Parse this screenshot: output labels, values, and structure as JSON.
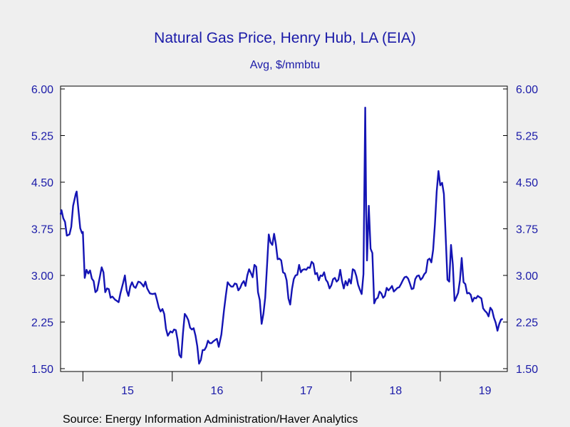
{
  "chart_data": {
    "type": "line",
    "title": "Natural Gas Price, Henry Hub, LA (EIA)",
    "subtitle": "Avg, $/mmbtu",
    "source": "Source:  Energy Information Administration/Haver Analytics",
    "xlabel": "",
    "ylabel": "",
    "ylim": [
      1.5,
      6.0
    ],
    "y_ticks": [
      "6.00",
      "5.25",
      "4.50",
      "3.75",
      "3.00",
      "2.25",
      "1.50"
    ],
    "x_ticks": [
      "15",
      "16",
      "17",
      "18",
      "19"
    ],
    "grid": false,
    "line_color": "#1414b4",
    "x_unit": "year (decimal)",
    "series": [
      {
        "points": [
          [
            2014.25,
            3.98
          ],
          [
            2014.26,
            4.05
          ],
          [
            2014.28,
            3.92
          ],
          [
            2014.3,
            3.86
          ],
          [
            2014.32,
            3.64
          ],
          [
            2014.35,
            3.66
          ],
          [
            2014.37,
            3.78
          ],
          [
            2014.39,
            4.12
          ],
          [
            2014.42,
            4.31
          ],
          [
            2014.43,
            4.35
          ],
          [
            2014.45,
            4.05
          ],
          [
            2014.47,
            3.76
          ],
          [
            2014.49,
            3.68
          ],
          [
            2014.5,
            3.7
          ],
          [
            2014.52,
            2.96
          ],
          [
            2014.54,
            3.09
          ],
          [
            2014.56,
            3.03
          ],
          [
            2014.58,
            3.08
          ],
          [
            2014.6,
            2.95
          ],
          [
            2014.62,
            2.91
          ],
          [
            2014.64,
            2.73
          ],
          [
            2014.66,
            2.76
          ],
          [
            2014.69,
            2.98
          ],
          [
            2014.71,
            3.13
          ],
          [
            2014.73,
            3.05
          ],
          [
            2014.75,
            2.73
          ],
          [
            2014.77,
            2.79
          ],
          [
            2014.79,
            2.78
          ],
          [
            2014.81,
            2.64
          ],
          [
            2014.83,
            2.66
          ],
          [
            2014.86,
            2.61
          ],
          [
            2014.88,
            2.59
          ],
          [
            2014.9,
            2.57
          ],
          [
            2014.92,
            2.71
          ],
          [
            2014.95,
            2.88
          ],
          [
            2014.97,
            3.0
          ],
          [
            2014.99,
            2.76
          ],
          [
            2015.01,
            2.67
          ],
          [
            2015.03,
            2.82
          ],
          [
            2015.05,
            2.89
          ],
          [
            2015.07,
            2.82
          ],
          [
            2015.09,
            2.8
          ],
          [
            2015.12,
            2.9
          ],
          [
            2015.14,
            2.89
          ],
          [
            2015.16,
            2.86
          ],
          [
            2015.18,
            2.82
          ],
          [
            2015.2,
            2.9
          ],
          [
            2015.22,
            2.79
          ],
          [
            2015.25,
            2.71
          ],
          [
            2015.28,
            2.7
          ],
          [
            2015.31,
            2.71
          ],
          [
            2015.33,
            2.6
          ],
          [
            2015.35,
            2.48
          ],
          [
            2015.37,
            2.42
          ],
          [
            2015.39,
            2.46
          ],
          [
            2015.41,
            2.38
          ],
          [
            2015.43,
            2.14
          ],
          [
            2015.45,
            2.03
          ],
          [
            2015.48,
            2.1
          ],
          [
            2015.5,
            2.08
          ],
          [
            2015.52,
            2.13
          ],
          [
            2015.54,
            2.12
          ],
          [
            2015.56,
            1.96
          ],
          [
            2015.58,
            1.72
          ],
          [
            2015.6,
            1.68
          ],
          [
            2015.62,
            2.07
          ],
          [
            2015.64,
            2.38
          ],
          [
            2015.66,
            2.34
          ],
          [
            2015.68,
            2.28
          ],
          [
            2015.7,
            2.16
          ],
          [
            2015.72,
            2.13
          ],
          [
            2015.74,
            2.15
          ],
          [
            2015.76,
            2.03
          ],
          [
            2015.78,
            1.86
          ],
          [
            2015.8,
            1.58
          ],
          [
            2015.82,
            1.64
          ],
          [
            2015.84,
            1.8
          ],
          [
            2015.86,
            1.8
          ],
          [
            2015.88,
            1.85
          ],
          [
            2015.9,
            1.95
          ],
          [
            2015.92,
            1.91
          ],
          [
            2015.94,
            1.91
          ],
          [
            2015.96,
            1.94
          ],
          [
            2015.98,
            1.96
          ],
          [
            2016.0,
            1.98
          ],
          [
            2016.02,
            1.85
          ],
          [
            2016.05,
            2.05
          ],
          [
            2016.08,
            2.45
          ],
          [
            2016.1,
            2.68
          ],
          [
            2016.12,
            2.89
          ],
          [
            2016.14,
            2.85
          ],
          [
            2016.16,
            2.82
          ],
          [
            2016.18,
            2.82
          ],
          [
            2016.2,
            2.87
          ],
          [
            2016.22,
            2.86
          ],
          [
            2016.24,
            2.76
          ],
          [
            2016.26,
            2.8
          ],
          [
            2016.28,
            2.87
          ],
          [
            2016.3,
            2.91
          ],
          [
            2016.32,
            2.83
          ],
          [
            2016.34,
            3.0
          ],
          [
            2016.36,
            3.1
          ],
          [
            2016.38,
            3.04
          ],
          [
            2016.4,
            2.97
          ],
          [
            2016.42,
            3.17
          ],
          [
            2016.44,
            3.14
          ],
          [
            2016.46,
            2.73
          ],
          [
            2016.48,
            2.6
          ],
          [
            2016.5,
            2.22
          ],
          [
            2016.52,
            2.38
          ],
          [
            2016.54,
            2.64
          ],
          [
            2016.56,
            3.14
          ],
          [
            2016.58,
            3.66
          ],
          [
            2016.6,
            3.53
          ],
          [
            2016.62,
            3.49
          ],
          [
            2016.64,
            3.67
          ],
          [
            2016.66,
            3.5
          ],
          [
            2016.68,
            3.26
          ],
          [
            2016.7,
            3.27
          ],
          [
            2016.72,
            3.24
          ],
          [
            2016.74,
            3.05
          ],
          [
            2016.76,
            3.03
          ],
          [
            2016.78,
            2.92
          ],
          [
            2016.8,
            2.63
          ],
          [
            2016.82,
            2.53
          ],
          [
            2016.84,
            2.78
          ],
          [
            2016.86,
            2.94
          ],
          [
            2016.88,
            3.0
          ],
          [
            2016.9,
            3.01
          ],
          [
            2016.92,
            3.17
          ],
          [
            2016.94,
            3.05
          ],
          [
            2016.96,
            3.09
          ],
          [
            2016.98,
            3.1
          ],
          [
            2017.0,
            3.09
          ],
          [
            2017.02,
            3.13
          ],
          [
            2017.04,
            3.12
          ],
          [
            2017.06,
            3.22
          ],
          [
            2017.08,
            3.19
          ],
          [
            2017.1,
            3.02
          ],
          [
            2017.12,
            3.04
          ],
          [
            2017.14,
            2.92
          ],
          [
            2017.16,
            3.0
          ],
          [
            2017.18,
            2.99
          ],
          [
            2017.2,
            3.05
          ],
          [
            2017.22,
            2.93
          ],
          [
            2017.24,
            2.89
          ],
          [
            2017.26,
            2.79
          ],
          [
            2017.28,
            2.84
          ],
          [
            2017.3,
            2.94
          ],
          [
            2017.32,
            2.96
          ],
          [
            2017.34,
            2.9
          ],
          [
            2017.36,
            2.93
          ],
          [
            2017.38,
            3.09
          ],
          [
            2017.4,
            2.91
          ],
          [
            2017.42,
            2.79
          ],
          [
            2017.44,
            2.91
          ],
          [
            2017.46,
            2.84
          ],
          [
            2017.48,
            2.94
          ],
          [
            2017.5,
            2.87
          ],
          [
            2017.52,
            3.1
          ],
          [
            2017.54,
            3.08
          ],
          [
            2017.56,
            2.99
          ],
          [
            2017.58,
            2.85
          ],
          [
            2017.6,
            2.77
          ],
          [
            2017.62,
            2.7
          ],
          [
            2017.64,
            3.02
          ],
          [
            2017.66,
            5.7
          ],
          [
            2017.67,
            4.05
          ],
          [
            2017.68,
            3.24
          ],
          [
            2017.7,
            4.12
          ],
          [
            2017.72,
            3.43
          ],
          [
            2017.74,
            3.36
          ],
          [
            2017.76,
            2.55
          ],
          [
            2017.78,
            2.62
          ],
          [
            2017.8,
            2.64
          ],
          [
            2017.82,
            2.74
          ],
          [
            2017.84,
            2.71
          ],
          [
            2017.86,
            2.64
          ],
          [
            2017.88,
            2.67
          ],
          [
            2017.9,
            2.8
          ],
          [
            2017.92,
            2.76
          ],
          [
            2017.94,
            2.79
          ],
          [
            2017.96,
            2.83
          ],
          [
            2017.98,
            2.74
          ],
          [
            2018.0,
            2.77
          ],
          [
            2018.02,
            2.8
          ],
          [
            2018.04,
            2.81
          ],
          [
            2018.06,
            2.86
          ],
          [
            2018.08,
            2.92
          ],
          [
            2018.1,
            2.97
          ],
          [
            2018.12,
            2.98
          ],
          [
            2018.14,
            2.95
          ],
          [
            2018.16,
            2.87
          ],
          [
            2018.18,
            2.78
          ],
          [
            2018.2,
            2.79
          ],
          [
            2018.22,
            2.94
          ],
          [
            2018.24,
            2.99
          ],
          [
            2018.26,
            3.0
          ],
          [
            2018.28,
            2.93
          ],
          [
            2018.3,
            2.96
          ],
          [
            2018.32,
            3.02
          ],
          [
            2018.34,
            3.05
          ],
          [
            2018.36,
            3.25
          ],
          [
            2018.38,
            3.27
          ],
          [
            2018.4,
            3.21
          ],
          [
            2018.42,
            3.41
          ],
          [
            2018.44,
            3.82
          ],
          [
            2018.46,
            4.35
          ],
          [
            2018.48,
            4.68
          ],
          [
            2018.5,
            4.45
          ],
          [
            2018.52,
            4.49
          ],
          [
            2018.54,
            4.31
          ],
          [
            2018.56,
            3.63
          ],
          [
            2018.58,
            2.93
          ],
          [
            2018.6,
            2.9
          ],
          [
            2018.62,
            3.49
          ],
          [
            2018.64,
            3.18
          ],
          [
            2018.66,
            2.59
          ],
          [
            2018.68,
            2.65
          ],
          [
            2018.7,
            2.72
          ],
          [
            2018.72,
            2.92
          ],
          [
            2018.74,
            3.28
          ],
          [
            2018.76,
            2.89
          ],
          [
            2018.78,
            2.86
          ],
          [
            2018.8,
            2.71
          ],
          [
            2018.82,
            2.72
          ],
          [
            2018.84,
            2.69
          ],
          [
            2018.86,
            2.58
          ],
          [
            2018.88,
            2.64
          ],
          [
            2018.9,
            2.63
          ],
          [
            2018.92,
            2.67
          ],
          [
            2018.94,
            2.65
          ],
          [
            2018.96,
            2.63
          ],
          [
            2018.98,
            2.47
          ],
          [
            2019.0,
            2.43
          ],
          [
            2019.02,
            2.4
          ],
          [
            2019.04,
            2.34
          ],
          [
            2019.06,
            2.48
          ],
          [
            2019.08,
            2.44
          ],
          [
            2019.1,
            2.32
          ],
          [
            2019.12,
            2.24
          ],
          [
            2019.14,
            2.11
          ],
          [
            2019.16,
            2.22
          ],
          [
            2019.18,
            2.29
          ],
          [
            2019.2,
            2.3
          ]
        ]
      }
    ]
  }
}
